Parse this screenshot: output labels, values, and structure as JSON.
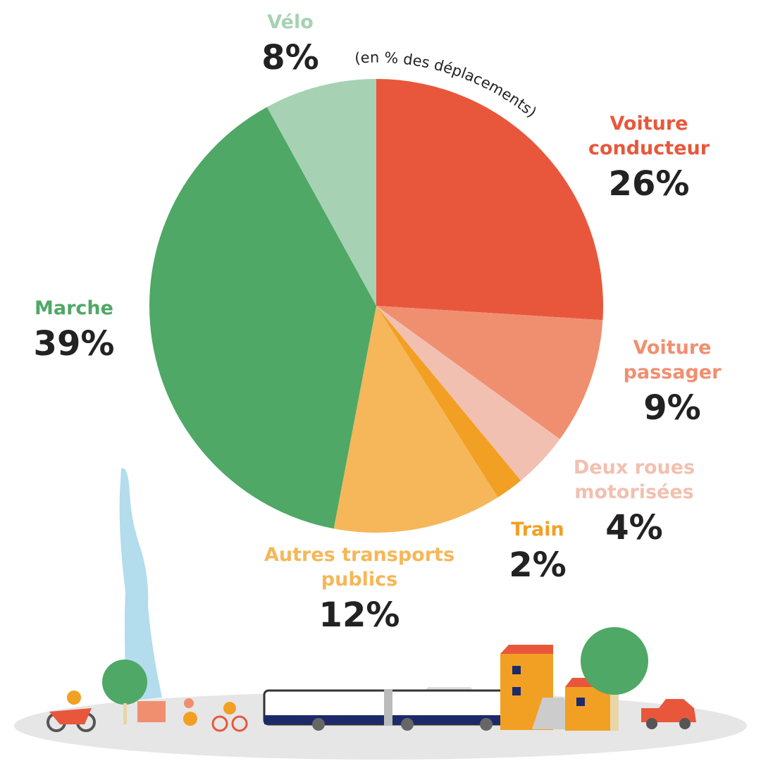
{
  "chart_data": {
    "type": "pie",
    "subtitle": "(en % des déplacements)",
    "categories": [
      "Voiture conducteur",
      "Voiture passager",
      "Deux roues motorisées",
      "Train",
      "Autres transports publics",
      "Marche",
      "Vélo"
    ],
    "values": [
      26,
      9,
      4,
      2,
      12,
      39,
      8
    ],
    "value_labels": [
      "26%",
      "9%",
      "4%",
      "2%",
      "12%",
      "39%",
      "8%"
    ],
    "colors": [
      "#e8573c",
      "#f08f70",
      "#f2c0b0",
      "#f2a023",
      "#f5b759",
      "#4fa866",
      "#a6d2b3"
    ]
  }
}
